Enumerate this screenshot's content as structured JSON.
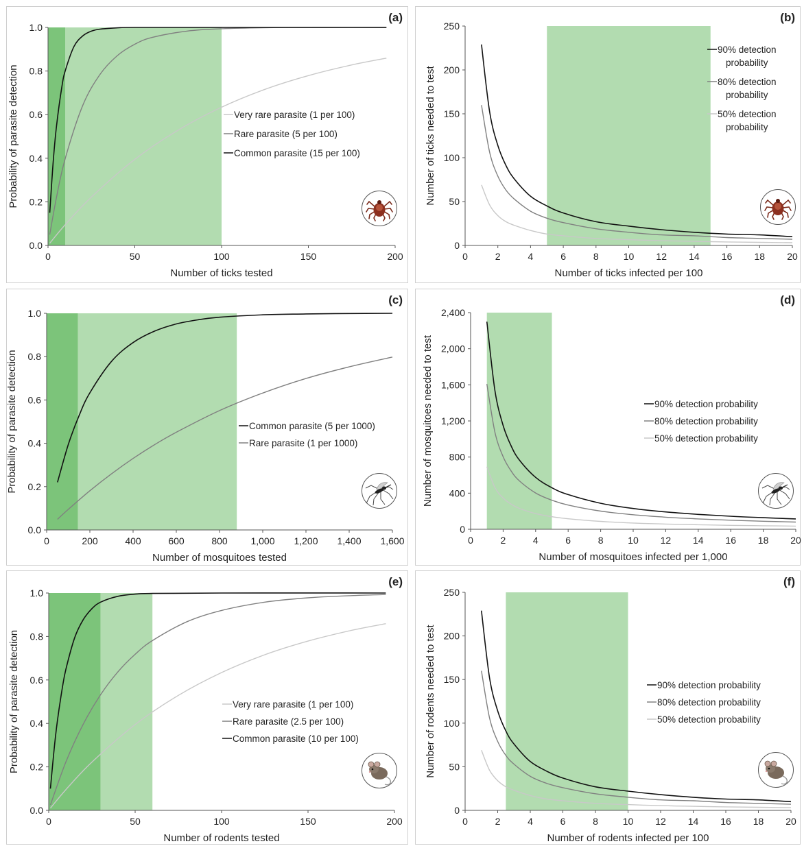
{
  "chart_data": [
    {
      "id": "a",
      "type": "line",
      "panel_label": "(a)",
      "xlabel": "Number of ticks tested",
      "ylabel": "Probability of parasite detection",
      "xlim": [
        0,
        200
      ],
      "ylim": [
        0,
        1
      ],
      "xticks": [
        0,
        50,
        100,
        150,
        200
      ],
      "xtick_labels": [
        "0",
        "50",
        "100",
        "150",
        "200"
      ],
      "yticks": [
        0,
        0.2,
        0.4,
        0.6,
        0.8,
        1.0
      ],
      "ytick_labels": [
        "0.0",
        "0.2",
        "0.4",
        "0.6",
        "0.8",
        "1.0"
      ],
      "shaded_regions": [
        {
          "x0": 0,
          "x1": 10,
          "color": "#7cc47a"
        },
        {
          "x0": 10,
          "x1": 100,
          "color": "#b2dcb0"
        }
      ],
      "legend_placement": "center-right",
      "series": [
        {
          "name": "Very rare parasite (1 per 100)",
          "color": "#c8c8c8",
          "x": [
            1,
            10,
            25,
            50,
            75,
            100,
            125,
            150,
            175,
            195
          ],
          "y": [
            0.01,
            0.096,
            0.222,
            0.395,
            0.529,
            0.634,
            0.716,
            0.779,
            0.828,
            0.859
          ]
        },
        {
          "name": "Rare parasite (5 per 100)",
          "color": "#808080",
          "x": [
            1,
            5,
            10,
            20,
            30,
            40,
            50,
            60,
            80,
            100,
            130,
            160,
            195
          ],
          "y": [
            0.05,
            0.226,
            0.401,
            0.642,
            0.785,
            0.871,
            0.923,
            0.954,
            0.983,
            0.994,
            0.999,
            1.0,
            1.0
          ]
        },
        {
          "name": "Common parasite (15 per 100)",
          "color": "#111111",
          "x": [
            1,
            3,
            5,
            8,
            10,
            15,
            20,
            25,
            30,
            40,
            50,
            100,
            195
          ],
          "y": [
            0.15,
            0.386,
            0.556,
            0.728,
            0.803,
            0.913,
            0.961,
            0.983,
            0.992,
            0.998,
            1.0,
            1.0,
            1.0
          ]
        }
      ]
    },
    {
      "id": "b",
      "type": "line",
      "panel_label": "(b)",
      "xlabel": "Number of ticks infected per 100",
      "ylabel": "Number of ticks needed to test",
      "xlim": [
        0,
        20
      ],
      "ylim": [
        0,
        250
      ],
      "xticks": [
        0,
        2,
        4,
        6,
        8,
        10,
        12,
        14,
        16,
        18,
        20
      ],
      "xtick_labels": [
        "0",
        "2",
        "4",
        "6",
        "8",
        "10",
        "12",
        "14",
        "16",
        "18",
        "20"
      ],
      "yticks": [
        0,
        50,
        100,
        150,
        200,
        250
      ],
      "ytick_labels": [
        "0",
        "50",
        "100",
        "150",
        "200",
        "250"
      ],
      "shaded_regions": [
        {
          "x0": 5,
          "x1": 15,
          "color": "#b2dcb0"
        }
      ],
      "legend_placement": "top-right",
      "series": [
        {
          "name": "90% detection probability",
          "color": "#111111",
          "x": [
            1,
            1.5,
            2,
            2.5,
            3,
            4,
            5,
            6,
            8,
            10,
            12,
            14,
            16,
            18,
            20
          ],
          "y": [
            229,
            152,
            114,
            91,
            76,
            56,
            45,
            37,
            27,
            22,
            18,
            15,
            13,
            12,
            10
          ]
        },
        {
          "name": "80% detection probability",
          "color": "#808080",
          "x": [
            1,
            1.5,
            2,
            2.5,
            3,
            4,
            5,
            6,
            8,
            10,
            12,
            14,
            16,
            18,
            20
          ],
          "y": [
            160,
            106,
            79,
            63,
            53,
            39,
            31,
            26,
            19,
            15,
            12,
            11,
            9,
            8,
            7
          ]
        },
        {
          "name": "50% detection probability",
          "color": "#c8c8c8",
          "x": [
            1,
            1.5,
            2,
            2.5,
            3,
            4,
            5,
            6,
            8,
            10,
            12,
            14,
            16,
            18,
            20
          ],
          "y": [
            69,
            46,
            34,
            27,
            23,
            17,
            13,
            11,
            8,
            6.6,
            5.4,
            4.6,
            4,
            3.5,
            3.1
          ]
        }
      ]
    },
    {
      "id": "c",
      "type": "line",
      "panel_label": "(c)",
      "xlabel": "Number of mosquitoes tested",
      "ylabel": "Probability of parasite detection",
      "xlim": [
        0,
        1600
      ],
      "ylim": [
        0,
        1
      ],
      "xticks": [
        0,
        200,
        400,
        600,
        800,
        1000,
        1200,
        1400,
        1600
      ],
      "xtick_labels": [
        "0",
        "200",
        "400",
        "600",
        "800",
        "1,000",
        "1,200",
        "1,400",
        "1,600"
      ],
      "yticks": [
        0,
        0.2,
        0.4,
        0.6,
        0.8,
        1.0
      ],
      "ytick_labels": [
        "0.0",
        "0.2",
        "0.4",
        "0.6",
        "0.8",
        "1.0"
      ],
      "shaded_regions": [
        {
          "x0": 0,
          "x1": 145,
          "color": "#7cc47a"
        },
        {
          "x0": 145,
          "x1": 880,
          "color": "#b2dcb0"
        }
      ],
      "legend_placement": "center-right",
      "series": [
        {
          "name": "Common parasite (5 per 1000)",
          "color": "#111111",
          "x": [
            50,
            100,
            150,
            200,
            300,
            400,
            500,
            600,
            700,
            800,
            1000,
            1200,
            1400,
            1600
          ],
          "y": [
            0.22,
            0.394,
            0.528,
            0.633,
            0.778,
            0.865,
            0.918,
            0.951,
            0.97,
            0.982,
            0.993,
            0.997,
            0.999,
            1.0
          ]
        },
        {
          "name": "Rare parasite (1 per 1000)",
          "color": "#808080",
          "x": [
            50,
            100,
            200,
            300,
            400,
            500,
            600,
            800,
            1000,
            1200,
            1400,
            1600
          ],
          "y": [
            0.049,
            0.095,
            0.181,
            0.259,
            0.33,
            0.394,
            0.451,
            0.551,
            0.632,
            0.699,
            0.753,
            0.798
          ]
        }
      ]
    },
    {
      "id": "d",
      "type": "line",
      "panel_label": "(d)",
      "xlabel": "Number of mosquitoes infected per 1,000",
      "ylabel": "Number of mosquitoes needed to test",
      "xlim": [
        0,
        20
      ],
      "ylim": [
        0,
        2400
      ],
      "xticks": [
        0,
        2,
        4,
        6,
        8,
        10,
        12,
        14,
        16,
        18,
        20
      ],
      "xtick_labels": [
        "0",
        "2",
        "4",
        "6",
        "8",
        "10",
        "12",
        "14",
        "16",
        "18",
        "20"
      ],
      "yticks": [
        0,
        400,
        800,
        1200,
        1600,
        2000,
        2400
      ],
      "ytick_labels": [
        "0",
        "400",
        "800",
        "1,200",
        "1,600",
        "2,000",
        "2,400"
      ],
      "shaded_regions": [
        {
          "x0": 1,
          "x1": 5,
          "color": "#b2dcb0"
        }
      ],
      "legend_placement": "center-right",
      "series": [
        {
          "name": "90% detection probability",
          "color": "#111111",
          "x": [
            1,
            1.5,
            2,
            2.5,
            3,
            4,
            5,
            6,
            8,
            10,
            12,
            14,
            16,
            18,
            20
          ],
          "y": [
            2300,
            1534,
            1150,
            920,
            767,
            575,
            460,
            384,
            288,
            230,
            192,
            165,
            144,
            128,
            115
          ]
        },
        {
          "name": "80% detection probability",
          "color": "#808080",
          "x": [
            1,
            1.5,
            2,
            2.5,
            3,
            4,
            5,
            6,
            8,
            10,
            12,
            14,
            16,
            18,
            20
          ],
          "y": [
            1609,
            1073,
            804,
            643,
            536,
            402,
            322,
            268,
            201,
            161,
            134,
            115,
            100,
            89,
            80
          ]
        },
        {
          "name": "50% detection probability",
          "color": "#c8c8c8",
          "x": [
            1,
            1.5,
            2,
            2.5,
            3,
            4,
            5,
            6,
            8,
            10,
            12,
            14,
            16,
            18,
            20
          ],
          "y": [
            693,
            462,
            346,
            277,
            231,
            173,
            139,
            116,
            87,
            69,
            58,
            50,
            43,
            39,
            35
          ]
        }
      ]
    },
    {
      "id": "e",
      "type": "line",
      "panel_label": "(e)",
      "xlabel": "Number of rodents tested",
      "ylabel": "Probability of parasite detection",
      "xlim": [
        0,
        200
      ],
      "ylim": [
        0,
        1
      ],
      "xticks": [
        0,
        50,
        100,
        150,
        200
      ],
      "xtick_labels": [
        "0",
        "50",
        "100",
        "150",
        "200"
      ],
      "yticks": [
        0,
        0.2,
        0.4,
        0.6,
        0.8,
        1.0
      ],
      "ytick_labels": [
        "0.0",
        "0.2",
        "0.4",
        "0.6",
        "0.8",
        "1.0"
      ],
      "shaded_regions": [
        {
          "x0": 0,
          "x1": 30,
          "color": "#7cc47a"
        },
        {
          "x0": 30,
          "x1": 60,
          "color": "#b2dcb0"
        }
      ],
      "legend_placement": "center-right",
      "series": [
        {
          "name": "Very rare parasite (1 per 100)",
          "color": "#c8c8c8",
          "x": [
            1,
            10,
            25,
            50,
            75,
            100,
            125,
            150,
            175,
            195
          ],
          "y": [
            0.01,
            0.096,
            0.222,
            0.395,
            0.529,
            0.634,
            0.716,
            0.779,
            0.828,
            0.859
          ]
        },
        {
          "name": "Rare parasite (2.5 per 100)",
          "color": "#808080",
          "x": [
            1,
            10,
            20,
            30,
            40,
            50,
            60,
            80,
            100,
            125,
            150,
            175,
            195
          ],
          "y": [
            0.025,
            0.224,
            0.397,
            0.532,
            0.637,
            0.718,
            0.781,
            0.868,
            0.92,
            0.958,
            0.978,
            0.988,
            0.993
          ]
        },
        {
          "name": "Common parasite (10 per 100)",
          "color": "#111111",
          "x": [
            1,
            3,
            5,
            8,
            10,
            15,
            20,
            25,
            30,
            40,
            50,
            60,
            100,
            195
          ],
          "y": [
            0.1,
            0.271,
            0.41,
            0.57,
            0.651,
            0.794,
            0.878,
            0.928,
            0.958,
            0.985,
            0.995,
            0.998,
            1.0,
            1.0
          ]
        }
      ]
    },
    {
      "id": "f",
      "type": "line",
      "panel_label": "(f)",
      "xlabel": "Number of rodents infected per 100",
      "ylabel": "Number of rodents needed to test",
      "xlim": [
        0,
        20
      ],
      "ylim": [
        0,
        250
      ],
      "xticks": [
        0,
        2,
        4,
        6,
        8,
        10,
        12,
        14,
        16,
        18,
        20
      ],
      "xtick_labels": [
        "0",
        "2",
        "4",
        "6",
        "8",
        "10",
        "12",
        "14",
        "16",
        "18",
        "20"
      ],
      "yticks": [
        0,
        50,
        100,
        150,
        200,
        250
      ],
      "ytick_labels": [
        "0",
        "50",
        "100",
        "150",
        "200",
        "250"
      ],
      "shaded_regions": [
        {
          "x0": 2.5,
          "x1": 10,
          "color": "#b2dcb0"
        }
      ],
      "legend_placement": "center-right",
      "series": [
        {
          "name": "90% detection probability",
          "color": "#111111",
          "x": [
            1,
            1.5,
            2,
            2.5,
            3,
            4,
            5,
            6,
            8,
            10,
            12,
            14,
            16,
            18,
            20
          ],
          "y": [
            229,
            152,
            114,
            91,
            76,
            56,
            45,
            37,
            27,
            22,
            18,
            15,
            13,
            12,
            10
          ]
        },
        {
          "name": "80% detection probability",
          "color": "#808080",
          "x": [
            1,
            1.5,
            2,
            2.5,
            3,
            4,
            5,
            6,
            8,
            10,
            12,
            14,
            16,
            18,
            20
          ],
          "y": [
            160,
            106,
            79,
            63,
            53,
            39,
            31,
            26,
            19,
            15,
            12,
            11,
            9,
            8,
            7
          ]
        },
        {
          "name": "50% detection probability",
          "color": "#c8c8c8",
          "x": [
            1,
            1.5,
            2,
            2.5,
            3,
            4,
            5,
            6,
            8,
            10,
            12,
            14,
            16,
            18,
            20
          ],
          "y": [
            69,
            46,
            34,
            27,
            23,
            17,
            13,
            11,
            8,
            6.6,
            5.4,
            4.6,
            4,
            3.5,
            3.1
          ]
        }
      ]
    }
  ],
  "icons": {
    "a": "tick-icon",
    "b": "tick-icon",
    "c": "mosquito-icon",
    "d": "mosquito-icon",
    "e": "rodent-icon",
    "f": "rodent-icon"
  },
  "colors": {
    "dark_green": "#7cc47a",
    "light_green": "#b2dcb0",
    "black_line": "#111111",
    "gray_line": "#808080",
    "light_line": "#c8c8c8"
  }
}
